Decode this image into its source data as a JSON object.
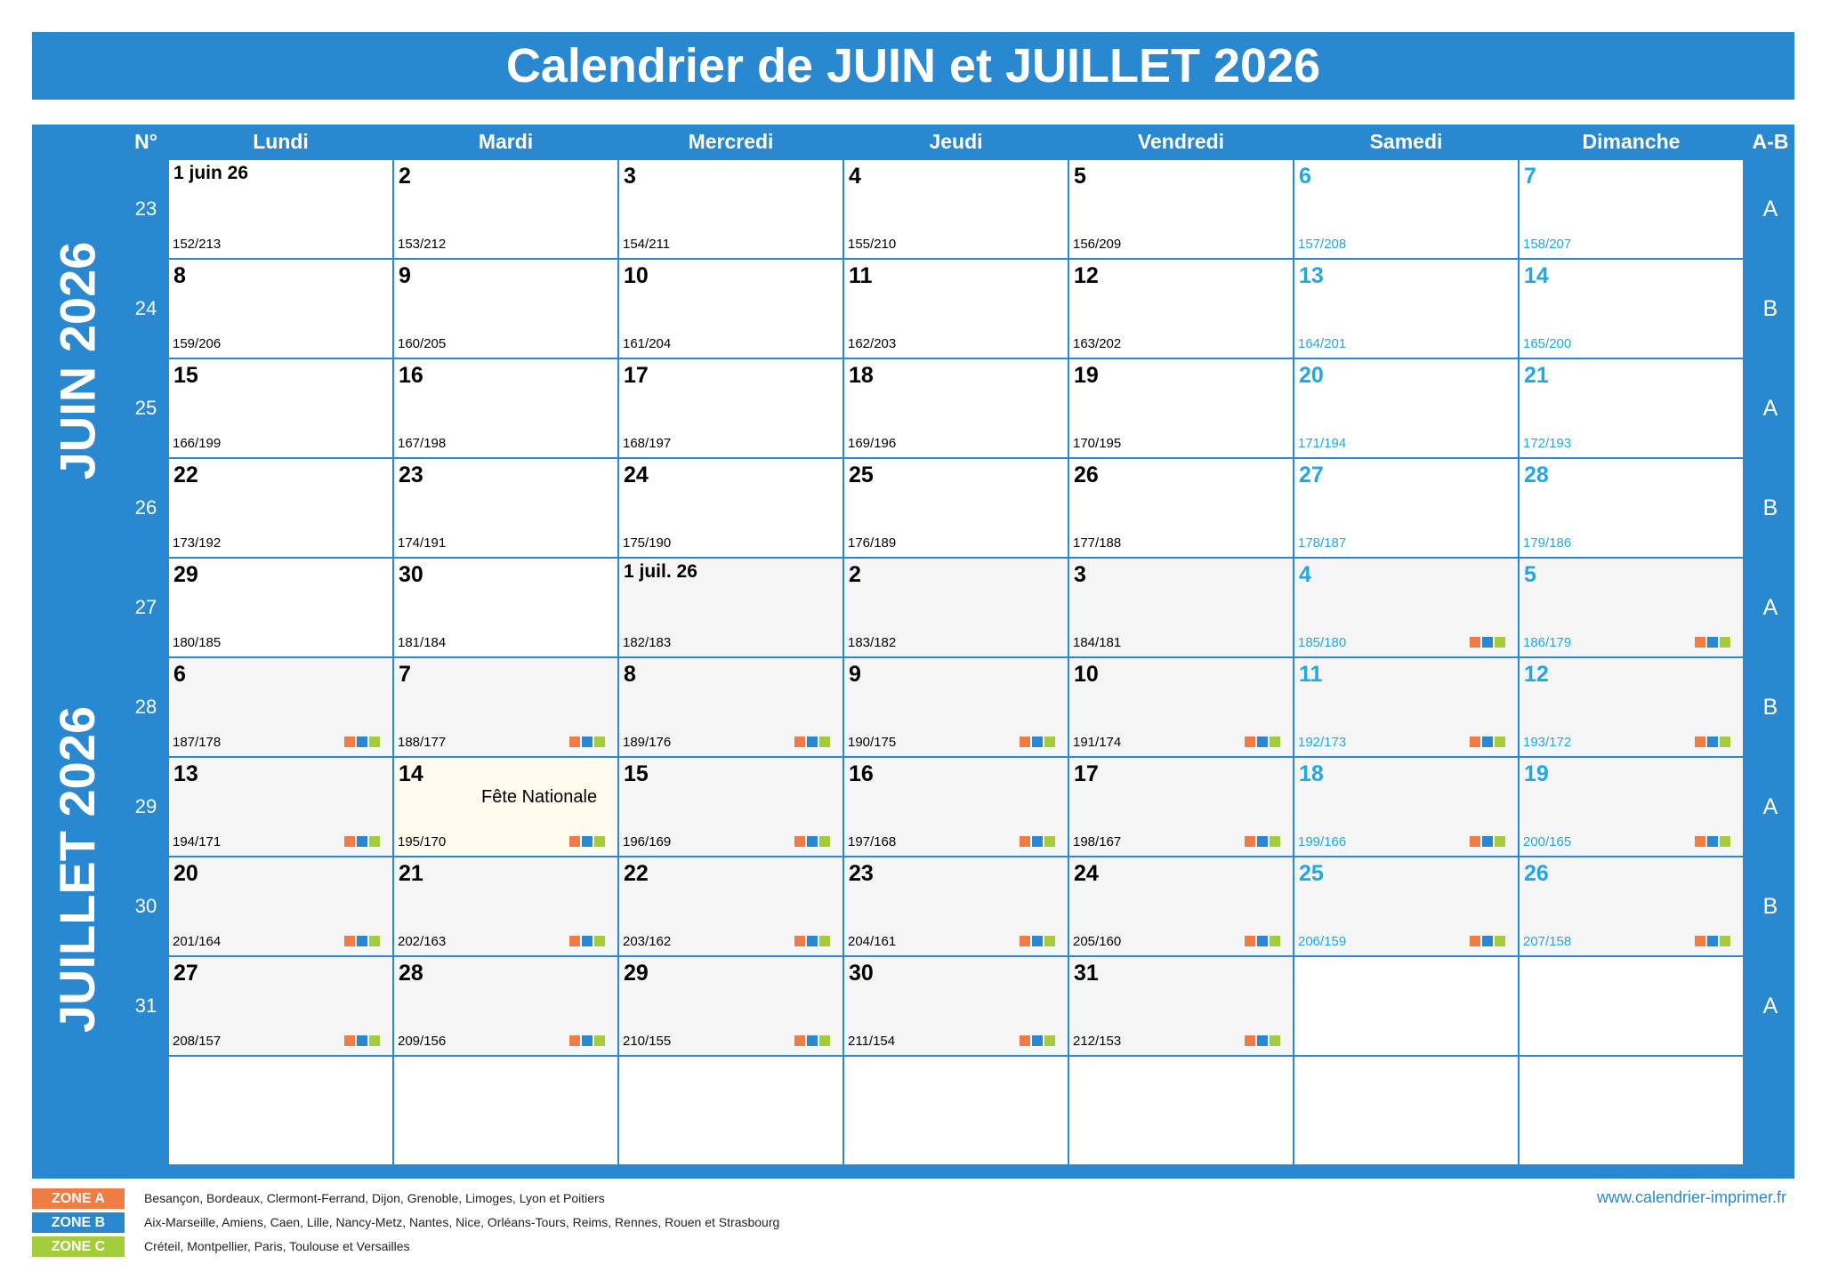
{
  "title": "Calendrier de JUIN et JUILLET 2026",
  "headers": {
    "week_no": "N°",
    "ab": "A-B",
    "days": [
      "Lundi",
      "Mardi",
      "Mercredi",
      "Jeudi",
      "Vendredi",
      "Samedi",
      "Dimanche"
    ]
  },
  "months": [
    "JUIN 2026",
    "JUILLET 2026"
  ],
  "weeks": [
    {
      "no": "23",
      "ab": "A",
      "days": [
        {
          "label": "1 juin 26",
          "yd": "152/213"
        },
        {
          "label": "2",
          "yd": "153/212"
        },
        {
          "label": "3",
          "yd": "154/211"
        },
        {
          "label": "4",
          "yd": "155/210"
        },
        {
          "label": "5",
          "yd": "156/209"
        },
        {
          "label": "6",
          "yd": "157/208"
        },
        {
          "label": "7",
          "yd": "158/207"
        }
      ]
    },
    {
      "no": "24",
      "ab": "B",
      "days": [
        {
          "label": "8",
          "yd": "159/206"
        },
        {
          "label": "9",
          "yd": "160/205"
        },
        {
          "label": "10",
          "yd": "161/204"
        },
        {
          "label": "11",
          "yd": "162/203"
        },
        {
          "label": "12",
          "yd": "163/202"
        },
        {
          "label": "13",
          "yd": "164/201"
        },
        {
          "label": "14",
          "yd": "165/200"
        }
      ]
    },
    {
      "no": "25",
      "ab": "A",
      "days": [
        {
          "label": "15",
          "yd": "166/199"
        },
        {
          "label": "16",
          "yd": "167/198"
        },
        {
          "label": "17",
          "yd": "168/197"
        },
        {
          "label": "18",
          "yd": "169/196"
        },
        {
          "label": "19",
          "yd": "170/195"
        },
        {
          "label": "20",
          "yd": "171/194"
        },
        {
          "label": "21",
          "yd": "172/193"
        }
      ]
    },
    {
      "no": "26",
      "ab": "B",
      "days": [
        {
          "label": "22",
          "yd": "173/192"
        },
        {
          "label": "23",
          "yd": "174/191"
        },
        {
          "label": "24",
          "yd": "175/190"
        },
        {
          "label": "25",
          "yd": "176/189"
        },
        {
          "label": "26",
          "yd": "177/188"
        },
        {
          "label": "27",
          "yd": "178/187"
        },
        {
          "label": "28",
          "yd": "179/186"
        }
      ]
    },
    {
      "no": "27",
      "ab": "A",
      "days": [
        {
          "label": "29",
          "yd": "180/185"
        },
        {
          "label": "30",
          "yd": "181/184"
        },
        {
          "label": "1 juil. 26",
          "yd": "182/183"
        },
        {
          "label": "2",
          "yd": "183/182"
        },
        {
          "label": "3",
          "yd": "184/181"
        },
        {
          "label": "4",
          "yd": "185/180",
          "zones": true
        },
        {
          "label": "5",
          "yd": "186/179",
          "zones": true
        }
      ]
    },
    {
      "no": "28",
      "ab": "B",
      "days": [
        {
          "label": "6",
          "yd": "187/178",
          "zones": true
        },
        {
          "label": "7",
          "yd": "188/177",
          "zones": true
        },
        {
          "label": "8",
          "yd": "189/176",
          "zones": true
        },
        {
          "label": "9",
          "yd": "190/175",
          "zones": true
        },
        {
          "label": "10",
          "yd": "191/174",
          "zones": true
        },
        {
          "label": "11",
          "yd": "192/173",
          "zones": true
        },
        {
          "label": "12",
          "yd": "193/172",
          "zones": true
        }
      ]
    },
    {
      "no": "29",
      "ab": "A",
      "days": [
        {
          "label": "13",
          "yd": "194/171",
          "zones": true
        },
        {
          "label": "14",
          "yd": "195/170",
          "zones": true,
          "holiday": "Fête Nationale"
        },
        {
          "label": "15",
          "yd": "196/169",
          "zones": true
        },
        {
          "label": "16",
          "yd": "197/168",
          "zones": true
        },
        {
          "label": "17",
          "yd": "198/167",
          "zones": true
        },
        {
          "label": "18",
          "yd": "199/166",
          "zones": true
        },
        {
          "label": "19",
          "yd": "200/165",
          "zones": true
        }
      ]
    },
    {
      "no": "30",
      "ab": "B",
      "days": [
        {
          "label": "20",
          "yd": "201/164",
          "zones": true
        },
        {
          "label": "21",
          "yd": "202/163",
          "zones": true
        },
        {
          "label": "22",
          "yd": "203/162",
          "zones": true
        },
        {
          "label": "23",
          "yd": "204/161",
          "zones": true
        },
        {
          "label": "24",
          "yd": "205/160",
          "zones": true
        },
        {
          "label": "25",
          "yd": "206/159",
          "zones": true
        },
        {
          "label": "26",
          "yd": "207/158",
          "zones": true
        }
      ]
    },
    {
      "no": "31",
      "ab": "A",
      "days": [
        {
          "label": "27",
          "yd": "208/157",
          "zones": true
        },
        {
          "label": "28",
          "yd": "209/156",
          "zones": true
        },
        {
          "label": "29",
          "yd": "210/155",
          "zones": true
        },
        {
          "label": "30",
          "yd": "211/154",
          "zones": true
        },
        {
          "label": "31",
          "yd": "212/153",
          "zones": true
        },
        null,
        null
      ]
    }
  ],
  "legend": [
    {
      "zone": "ZONE A",
      "color": "#f07c45",
      "cities": "Besançon, Bordeaux, Clermont-Ferrand, Dijon, Grenoble, Limoges, Lyon et Poitiers"
    },
    {
      "zone": "ZONE B",
      "color": "#2a88d0",
      "cities": "Aix-Marseille, Amiens, Caen, Lille, Nancy-Metz, Nantes, Nice, Orléans-Tours, Reims, Rennes, Rouen et Strasbourg"
    },
    {
      "zone": "ZONE C",
      "color": "#a3cc3a",
      "cities": "Créteil, Montpellier, Paris, Toulouse et Versailles"
    }
  ],
  "website": "www.calendrier-imprimer.fr",
  "colors": {
    "primary": "#2a88d0",
    "weekend_text": "#1fa8e3",
    "zone_a": "#f07c45",
    "zone_b": "#2a88d0",
    "zone_c": "#a3cc3a"
  }
}
